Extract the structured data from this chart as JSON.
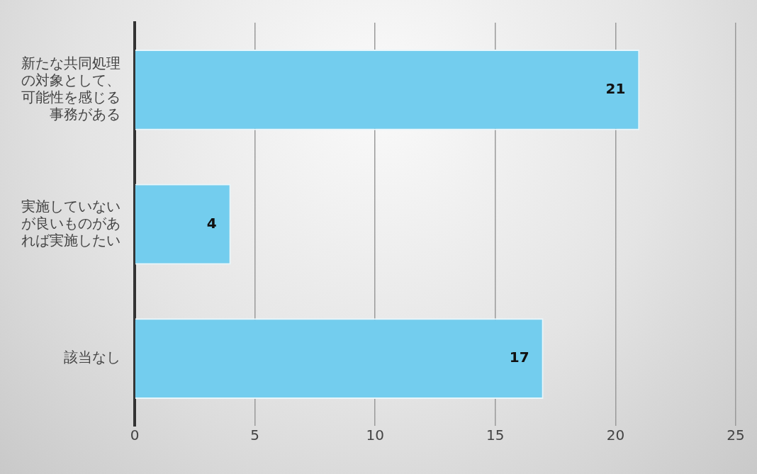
{
  "chart_data": {
    "type": "bar",
    "orientation": "horizontal",
    "categories": [
      "新たな共同処理の対象として、可能性を感じる事務がある",
      "実施していないが良いものがあれば実施したい",
      "該当なし"
    ],
    "values": [
      21,
      4,
      17
    ],
    "color": "#73cdee",
    "xlim": [
      0,
      25
    ],
    "xticks": [
      0,
      5,
      10,
      15,
      20,
      25
    ],
    "grid": "x",
    "legend": false,
    "data_labels": true
  }
}
